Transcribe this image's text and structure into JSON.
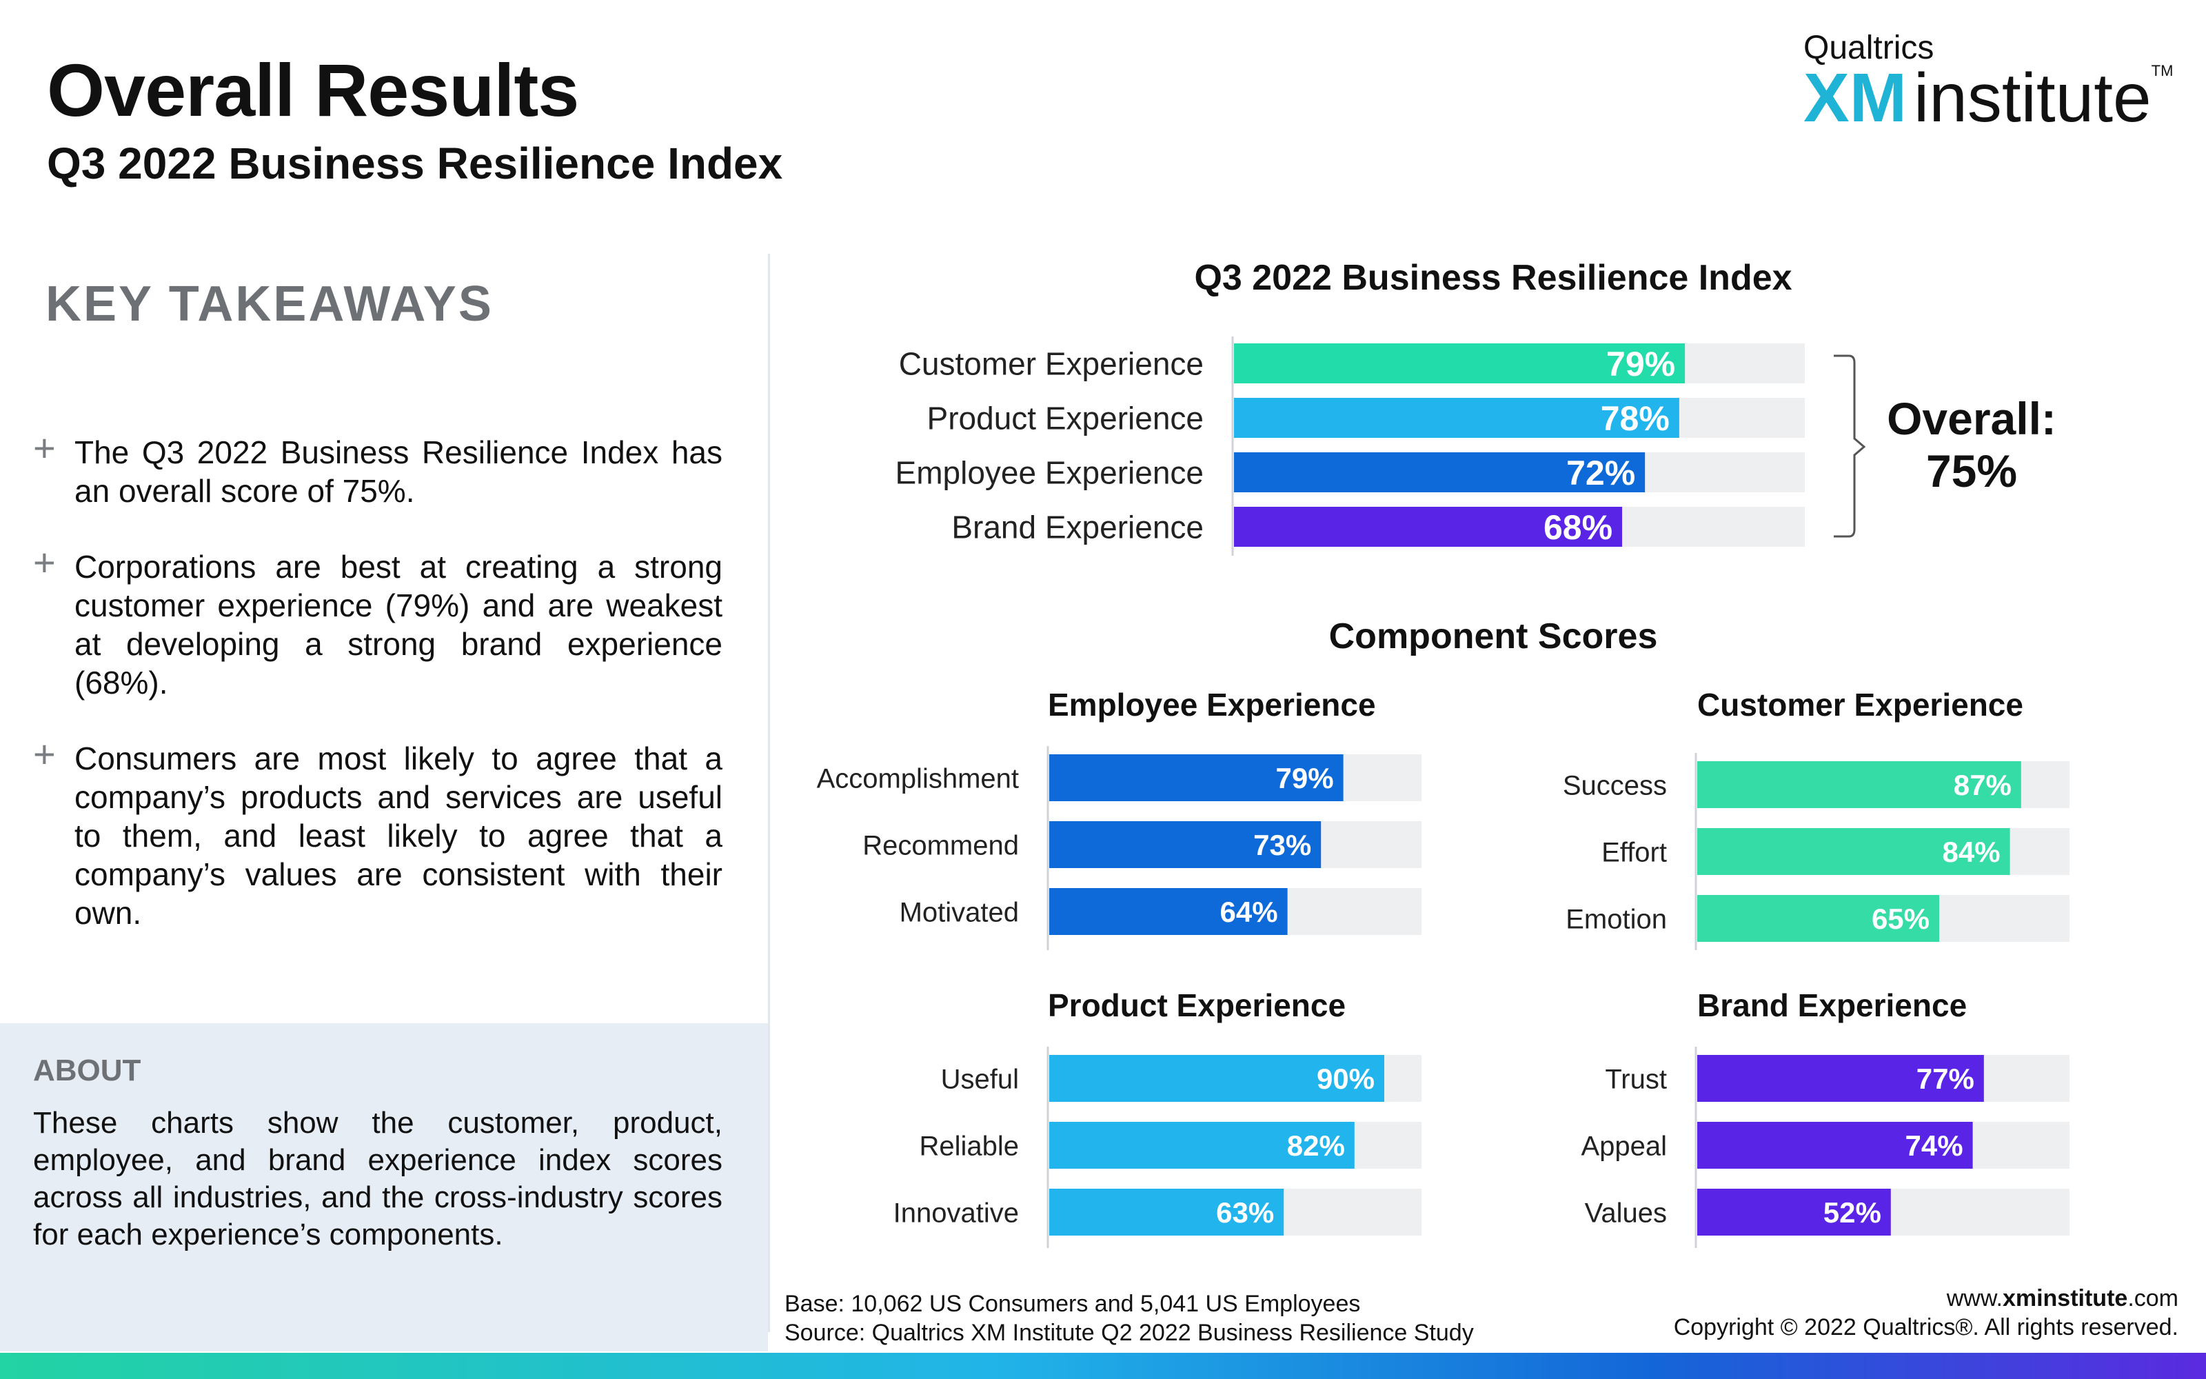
{
  "header": {
    "title": "Overall Results",
    "subtitle": "Q3 2022 Business Resilience Index"
  },
  "logo": {
    "top": "Qualtrics",
    "xm": "XM",
    "institute": "institute",
    "tm": "TM"
  },
  "takeaways": {
    "heading": "KEY TAKEAWAYS",
    "items": [
      "The Q3 2022 Business Resilience Index has an overall score of 75%.",
      "Corporations are best at creating a strong customer experience (79%) and are weakest at developing a strong brand experience (68%).",
      "Consumers are most likely to agree that a company’s products and services are useful to them, and least likely to agree that a company’s values are consistent with their own."
    ],
    "plus_icon": "+"
  },
  "about": {
    "heading": "ABOUT",
    "text": "These charts show the customer, product, employee, and brand experience index scores across all industries, and the cross-industry scores for each experience’s components."
  },
  "footer": {
    "base": "Base: 10,062 US Consumers and 5,041 US Employees",
    "source": "Source: Qualtrics XM Institute Q2 2022 Business Resilience Study",
    "url_prefix": "www.",
    "url_bold": "xminstitute",
    "url_suffix": ".com",
    "copyright": "Copyright © 2022 Qualtrics®. All rights reserved."
  },
  "colors": {
    "customer": "#22dcaa",
    "product": "#22b4ec",
    "employee": "#0f6ad9",
    "brand": "#5a24e6",
    "track": "#eeeff1",
    "customer_component": "#36dca6"
  },
  "components_title": "Component Scores",
  "chart_data": [
    {
      "type": "bar",
      "title": "Q3 2022 Business Resilience Index",
      "orientation": "horizontal",
      "categories": [
        "Customer Experience",
        "Product Experience",
        "Employee Experience",
        "Brand Experience"
      ],
      "values": [
        79,
        78,
        72,
        68
      ],
      "labels": [
        "79%",
        "78%",
        "72%",
        "68%"
      ],
      "xlim": [
        0,
        100
      ],
      "annotation": {
        "line1": "Overall:",
        "line2": "75%",
        "value": 75
      }
    },
    {
      "type": "bar",
      "title": "Employee Experience",
      "orientation": "horizontal",
      "categories": [
        "Accomplishment",
        "Recommend",
        "Motivated"
      ],
      "values": [
        79,
        73,
        64
      ],
      "labels": [
        "79%",
        "73%",
        "64%"
      ],
      "xlim": [
        0,
        100
      ]
    },
    {
      "type": "bar",
      "title": "Customer Experience",
      "orientation": "horizontal",
      "categories": [
        "Success",
        "Effort",
        "Emotion"
      ],
      "values": [
        87,
        84,
        65
      ],
      "labels": [
        "87%",
        "84%",
        "65%"
      ],
      "xlim": [
        0,
        100
      ]
    },
    {
      "type": "bar",
      "title": "Product Experience",
      "orientation": "horizontal",
      "categories": [
        "Useful",
        "Reliable",
        "Innovative"
      ],
      "values": [
        90,
        82,
        63
      ],
      "labels": [
        "90%",
        "82%",
        "63%"
      ],
      "xlim": [
        0,
        100
      ]
    },
    {
      "type": "bar",
      "title": "Brand Experience",
      "orientation": "horizontal",
      "categories": [
        "Trust",
        "Appeal",
        "Values"
      ],
      "values": [
        77,
        74,
        52
      ],
      "labels": [
        "77%",
        "74%",
        "52%"
      ],
      "xlim": [
        0,
        100
      ]
    }
  ]
}
